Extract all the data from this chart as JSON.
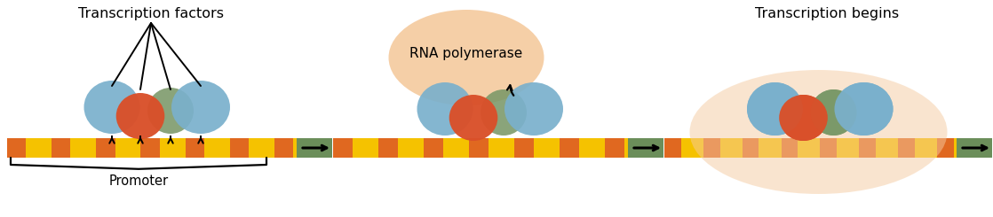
{
  "bg_color": "#ffffff",
  "yellow": "#f5c200",
  "orange": "#e06820",
  "dna_green": "#6b8e5a",
  "blue": "#7ab0cc",
  "red": "#d9502a",
  "green_circle": "#7a9868",
  "peach": "#f5cba0",
  "black": "#000000",
  "label_tf": "Transcription factors",
  "label_promoter": "Promoter",
  "label_rna": "RNA polymerase",
  "label_trans": "Transcription begins",
  "figw": 11.18,
  "figh": 2.45,
  "dpi": 100
}
